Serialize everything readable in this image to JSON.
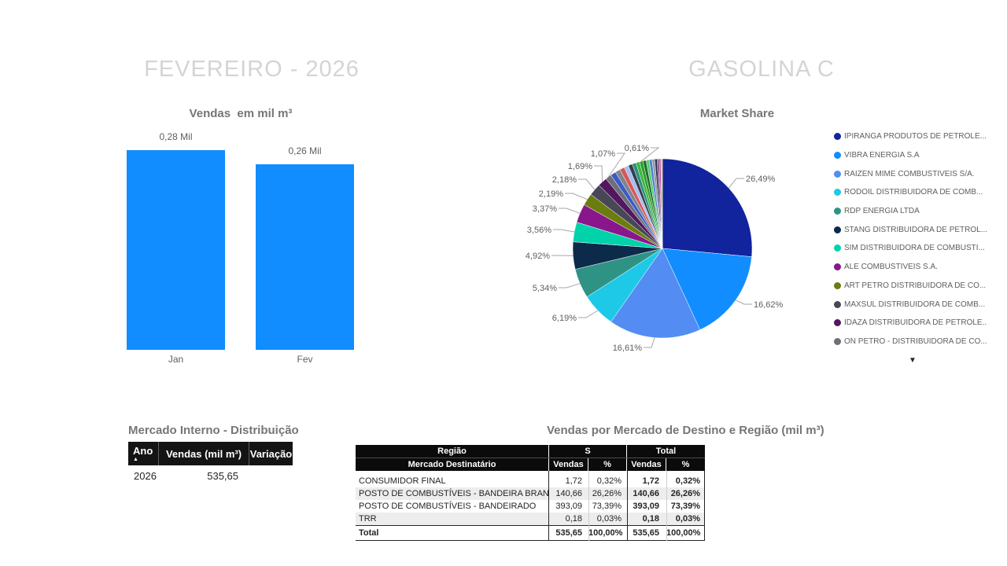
{
  "report": {
    "title_left": "FEVEREIRO - 2026",
    "title_right": "GASOLINA C"
  },
  "chart_data": [
    {
      "type": "bar",
      "title": "Vendas  em mil m³",
      "categories": [
        "Jan",
        "Fev"
      ],
      "values": [
        0.28,
        0.26
      ],
      "value_labels": [
        "0,28 Mil",
        "0,26 Mil"
      ],
      "unit": "Mil",
      "color": "#118DFF",
      "ylim": [
        0,
        0.28
      ],
      "grid": false,
      "legend": false
    },
    {
      "type": "pie",
      "title": "Market Share",
      "slices": [
        {
          "name": "IPIRANGA PRODUTOS DE PETRÓLEO",
          "value": 26.49,
          "pct_label": "26,49%",
          "color": "#12239E"
        },
        {
          "name": "VIBRA ENERGIA S.A",
          "value": 16.62,
          "pct_label": "16,62%",
          "color": "#118DFF"
        },
        {
          "name": "RAIZEN MIME COMBUSTIVEIS S/A.",
          "value": 16.61,
          "pct_label": "16,61%",
          "color": "#538CF2"
        },
        {
          "name": "RODOIL DISTRIBUIDORA DE COMBUSTIVEIS",
          "value": 6.19,
          "pct_label": "6,19%",
          "color": "#1EC9E8"
        },
        {
          "name": "RDP ENERGIA LTDA",
          "value": 5.34,
          "pct_label": "5,34%",
          "color": "#2E9384"
        },
        {
          "name": "STANG DISTRIBUIDORA DE PETRÓLEO",
          "value": 4.92,
          "pct_label": "4,92%",
          "color": "#0C2B4B"
        },
        {
          "name": "SIM DISTRIBUIDORA DE COMBUSTIVEIS",
          "value": 3.56,
          "pct_label": "3,56%",
          "color": "#00D2AA"
        },
        {
          "name": "ALE COMBUSTIVEIS S.A.",
          "value": 3.37,
          "pct_label": "3,37%",
          "color": "#8A168C"
        },
        {
          "name": "ART PETRO DISTRIBUIDORA DE COMBUSTIVEIS",
          "value": 2.19,
          "pct_label": "2,19%",
          "color": "#6B7D0E"
        },
        {
          "name": "MAXSUL DISTRIBUIDORA DE COMBUSTIVEIS",
          "value": 2.18,
          "pct_label": "2,18%",
          "color": "#474756"
        },
        {
          "name": "IDAZA DISTRIBUIDORA DE PETRÓLEO",
          "value": 1.69,
          "pct_label": "1,69%",
          "color": "#521760"
        },
        {
          "name": "ON PETRO - DISTRIBUIDORA DE COMBUSTIVEIS",
          "value": 1.07,
          "pct_label": "1,07%",
          "color": "#6F6F78"
        },
        {
          "name": "other",
          "value": 0.98,
          "color": "#3A5BC7"
        },
        {
          "name": "other",
          "value": 0.92,
          "color": "#83838D"
        },
        {
          "name": "other",
          "value": 0.86,
          "color": "#D95757"
        },
        {
          "name": "other",
          "value": 0.8,
          "color": "#A6BDF2"
        },
        {
          "name": "other",
          "value": 0.74,
          "color": "#33404F"
        },
        {
          "name": "other",
          "value": 0.7,
          "color": "#2F8F7C"
        },
        {
          "name": "other",
          "value": 0.66,
          "color": "#3FB53F"
        },
        {
          "name": "other",
          "value": 0.61,
          "pct_label": "0,61%",
          "color": "#2AA02A"
        },
        {
          "name": "other",
          "value": 0.58,
          "color": "#206B31"
        },
        {
          "name": "other",
          "value": 0.55,
          "color": "#5BCE6B"
        },
        {
          "name": "other",
          "value": 0.52,
          "color": "#4E7ED8"
        },
        {
          "name": "other",
          "value": 0.48,
          "color": "#9199A1"
        },
        {
          "name": "other",
          "value": 0.42,
          "color": "#27304A"
        },
        {
          "name": "other",
          "value": 0.36,
          "color": "#8C4A8C"
        },
        {
          "name": "other",
          "value": 0.3,
          "color": "#BE3FAE"
        },
        {
          "name": "other",
          "value": 0.29,
          "color": "#C8CC3F"
        }
      ],
      "legend_position": "right"
    }
  ],
  "pie_legend": {
    "items": [
      {
        "label": "IPIRANGA PRODUTOS DE PETRÓLE...",
        "color": "#12239E"
      },
      {
        "label": "VIBRA ENERGIA S.A",
        "color": "#118DFF"
      },
      {
        "label": "RAIZEN MIME COMBUSTIVEIS S/A.",
        "color": "#538CF2"
      },
      {
        "label": "RODOIL DISTRIBUIDORA DE COMB...",
        "color": "#1EC9E8"
      },
      {
        "label": "RDP ENERGIA LTDA",
        "color": "#2E9384"
      },
      {
        "label": "STANG DISTRIBUIDORA DE PETRÓL...",
        "color": "#0C2B4B"
      },
      {
        "label": "SIM DISTRIBUIDORA DE COMBUSTI...",
        "color": "#00D2AA"
      },
      {
        "label": "ALE COMBUSTIVEIS S.A.",
        "color": "#8A168C"
      },
      {
        "label": "ART PETRO DISTRIBUIDORA DE CO...",
        "color": "#6B7D0E"
      },
      {
        "label": "MAXSUL DISTRIBUIDORA DE COMB...",
        "color": "#474756"
      },
      {
        "label": "IDAZA DISTRIBUIDORA DE PETRÓLE...",
        "color": "#521760"
      },
      {
        "label": "ON PETRO - DISTRIBUIDORA DE CO...",
        "color": "#6F6F78"
      }
    ],
    "scroll_more_icon": "▼"
  },
  "mercado_interno": {
    "title": "Mercado Interno - Distribuição",
    "columns": [
      "Ano",
      "Vendas (mil m³)",
      "Variação"
    ],
    "sort_icon": "▲",
    "rows": [
      [
        "2026",
        "535,65",
        ""
      ]
    ]
  },
  "vendas_mercado": {
    "title": "Vendas por Mercado de Destino e Região (mil m³)",
    "region_col": "Região",
    "group_s": "S",
    "group_total": "Total",
    "sub_headers": [
      "Mercado Destinatário",
      "Vendas",
      "%",
      "Vendas",
      "%"
    ],
    "rows": [
      [
        "CONSUMIDOR FINAL",
        "1,72",
        "0,32%",
        "1,72",
        "0,32%"
      ],
      [
        "POSTO DE COMBUSTÍVEIS - BANDEIRA BRANCA",
        "140,66",
        "26,26%",
        "140,66",
        "26,26%"
      ],
      [
        "POSTO DE COMBUSTÍVEIS - BANDEIRADO",
        "393,09",
        "73,39%",
        "393,09",
        "73,39%"
      ],
      [
        "TRR",
        "0,18",
        "0,03%",
        "0,18",
        "0,03%"
      ],
      [
        "Total",
        "535,65",
        "100,00%",
        "535,65",
        "100,00%"
      ]
    ]
  }
}
